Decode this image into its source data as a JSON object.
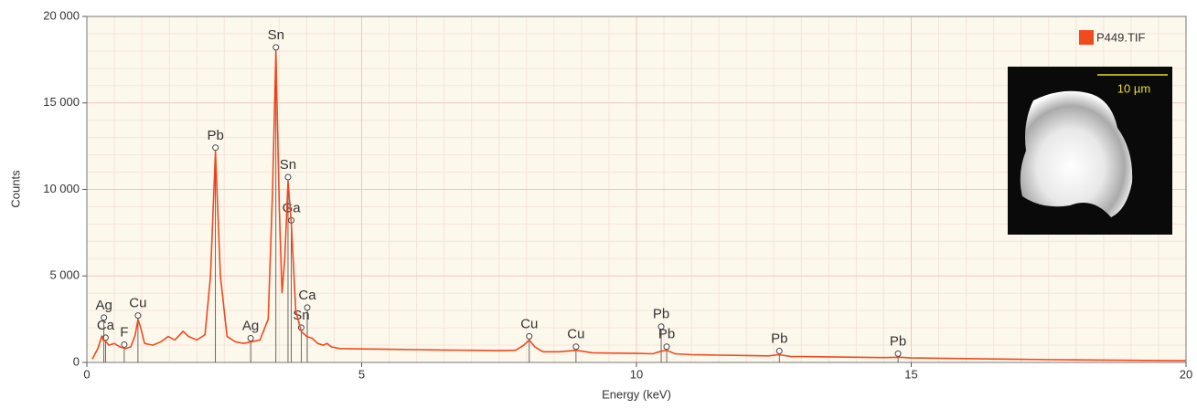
{
  "chart_data": {
    "type": "line",
    "x_label": "Energy (keV)",
    "y_label": "Counts",
    "xlim": [
      0,
      20
    ],
    "xticks": [
      0,
      5,
      10,
      15,
      20
    ],
    "ylim": [
      0,
      20000
    ],
    "yticks": [
      0,
      {
        "value": 5000,
        "label": "5 000"
      },
      {
        "value": 10000,
        "label": "10 000"
      },
      {
        "value": 15000,
        "label": "15 000"
      },
      {
        "value": 20000,
        "label": "20 000"
      }
    ],
    "grid": true,
    "legend": "top-right",
    "x": [
      0.1,
      0.2,
      0.27,
      0.3,
      0.35,
      0.4,
      0.5,
      0.6,
      0.7,
      0.8,
      0.88,
      0.93,
      0.98,
      1.05,
      1.2,
      1.35,
      1.48,
      1.6,
      1.75,
      1.85,
      2.0,
      2.15,
      2.25,
      2.34,
      2.43,
      2.55,
      2.7,
      2.85,
      3.0,
      3.15,
      3.3,
      3.38,
      3.44,
      3.5,
      3.55,
      3.6,
      3.66,
      3.72,
      3.8,
      3.9,
      4.0,
      4.1,
      4.2,
      4.3,
      4.37,
      4.45,
      4.6,
      5,
      5.5,
      6,
      6.5,
      7,
      7.5,
      7.8,
      7.95,
      8.05,
      8.15,
      8.3,
      8.6,
      8.9,
      9.2,
      9.6,
      10,
      10.3,
      10.45,
      10.55,
      10.7,
      11,
      11.5,
      12,
      12.4,
      12.6,
      12.8,
      13.5,
      14,
      14.5,
      14.8,
      15,
      16,
      17,
      18,
      19,
      20
    ],
    "series": [
      {
        "name": "P449.TIF",
        "color": "#f04a1f",
        "values": [
          200,
          800,
          1500,
          1300,
          1200,
          1000,
          1100,
          900,
          800,
          900,
          1600,
          2500,
          2000,
          1100,
          1000,
          1200,
          1500,
          1300,
          1800,
          1500,
          1300,
          1600,
          5000,
          12200,
          5000,
          1500,
          1200,
          1100,
          1200,
          1300,
          2500,
          10000,
          18000,
          9000,
          4000,
          6000,
          10500,
          8000,
          3000,
          1800,
          1500,
          1400,
          1100,
          1000,
          1100,
          900,
          800,
          780,
          760,
          740,
          720,
          700,
          680,
          700,
          1000,
          1300,
          900,
          620,
          620,
          700,
          560,
          540,
          520,
          500,
          650,
          700,
          500,
          450,
          420,
          400,
          380,
          450,
          350,
          320,
          300,
          280,
          300,
          260,
          220,
          180,
          150,
          120,
          100
        ]
      }
    ],
    "annotations": [
      {
        "text": "Sn",
        "x": 3.44
      },
      {
        "text": "Pb",
        "x": 2.34
      },
      {
        "text": "Sn",
        "x": 3.66
      },
      {
        "text": "Ga",
        "x": 3.72
      },
      {
        "text": "F",
        "x": 0.68
      },
      {
        "text": "Ca",
        "x": 0.34
      },
      {
        "text": "Ag",
        "x": 0.31
      },
      {
        "text": "Cu",
        "x": 0.93
      },
      {
        "text": "Ag",
        "x": 2.98
      },
      {
        "text": "Sn",
        "x": 3.9
      },
      {
        "text": "Ca",
        "x": 4.01
      },
      {
        "text": "Cu",
        "x": 8.05
      },
      {
        "text": "Cu",
        "x": 8.9
      },
      {
        "text": "Pb",
        "x": 10.55
      },
      {
        "text": "Pb",
        "x": 10.45
      },
      {
        "text": "Pb",
        "x": 12.6
      },
      {
        "text": "Pb",
        "x": 14.76
      }
    ],
    "inset_label": "10 µm"
  }
}
